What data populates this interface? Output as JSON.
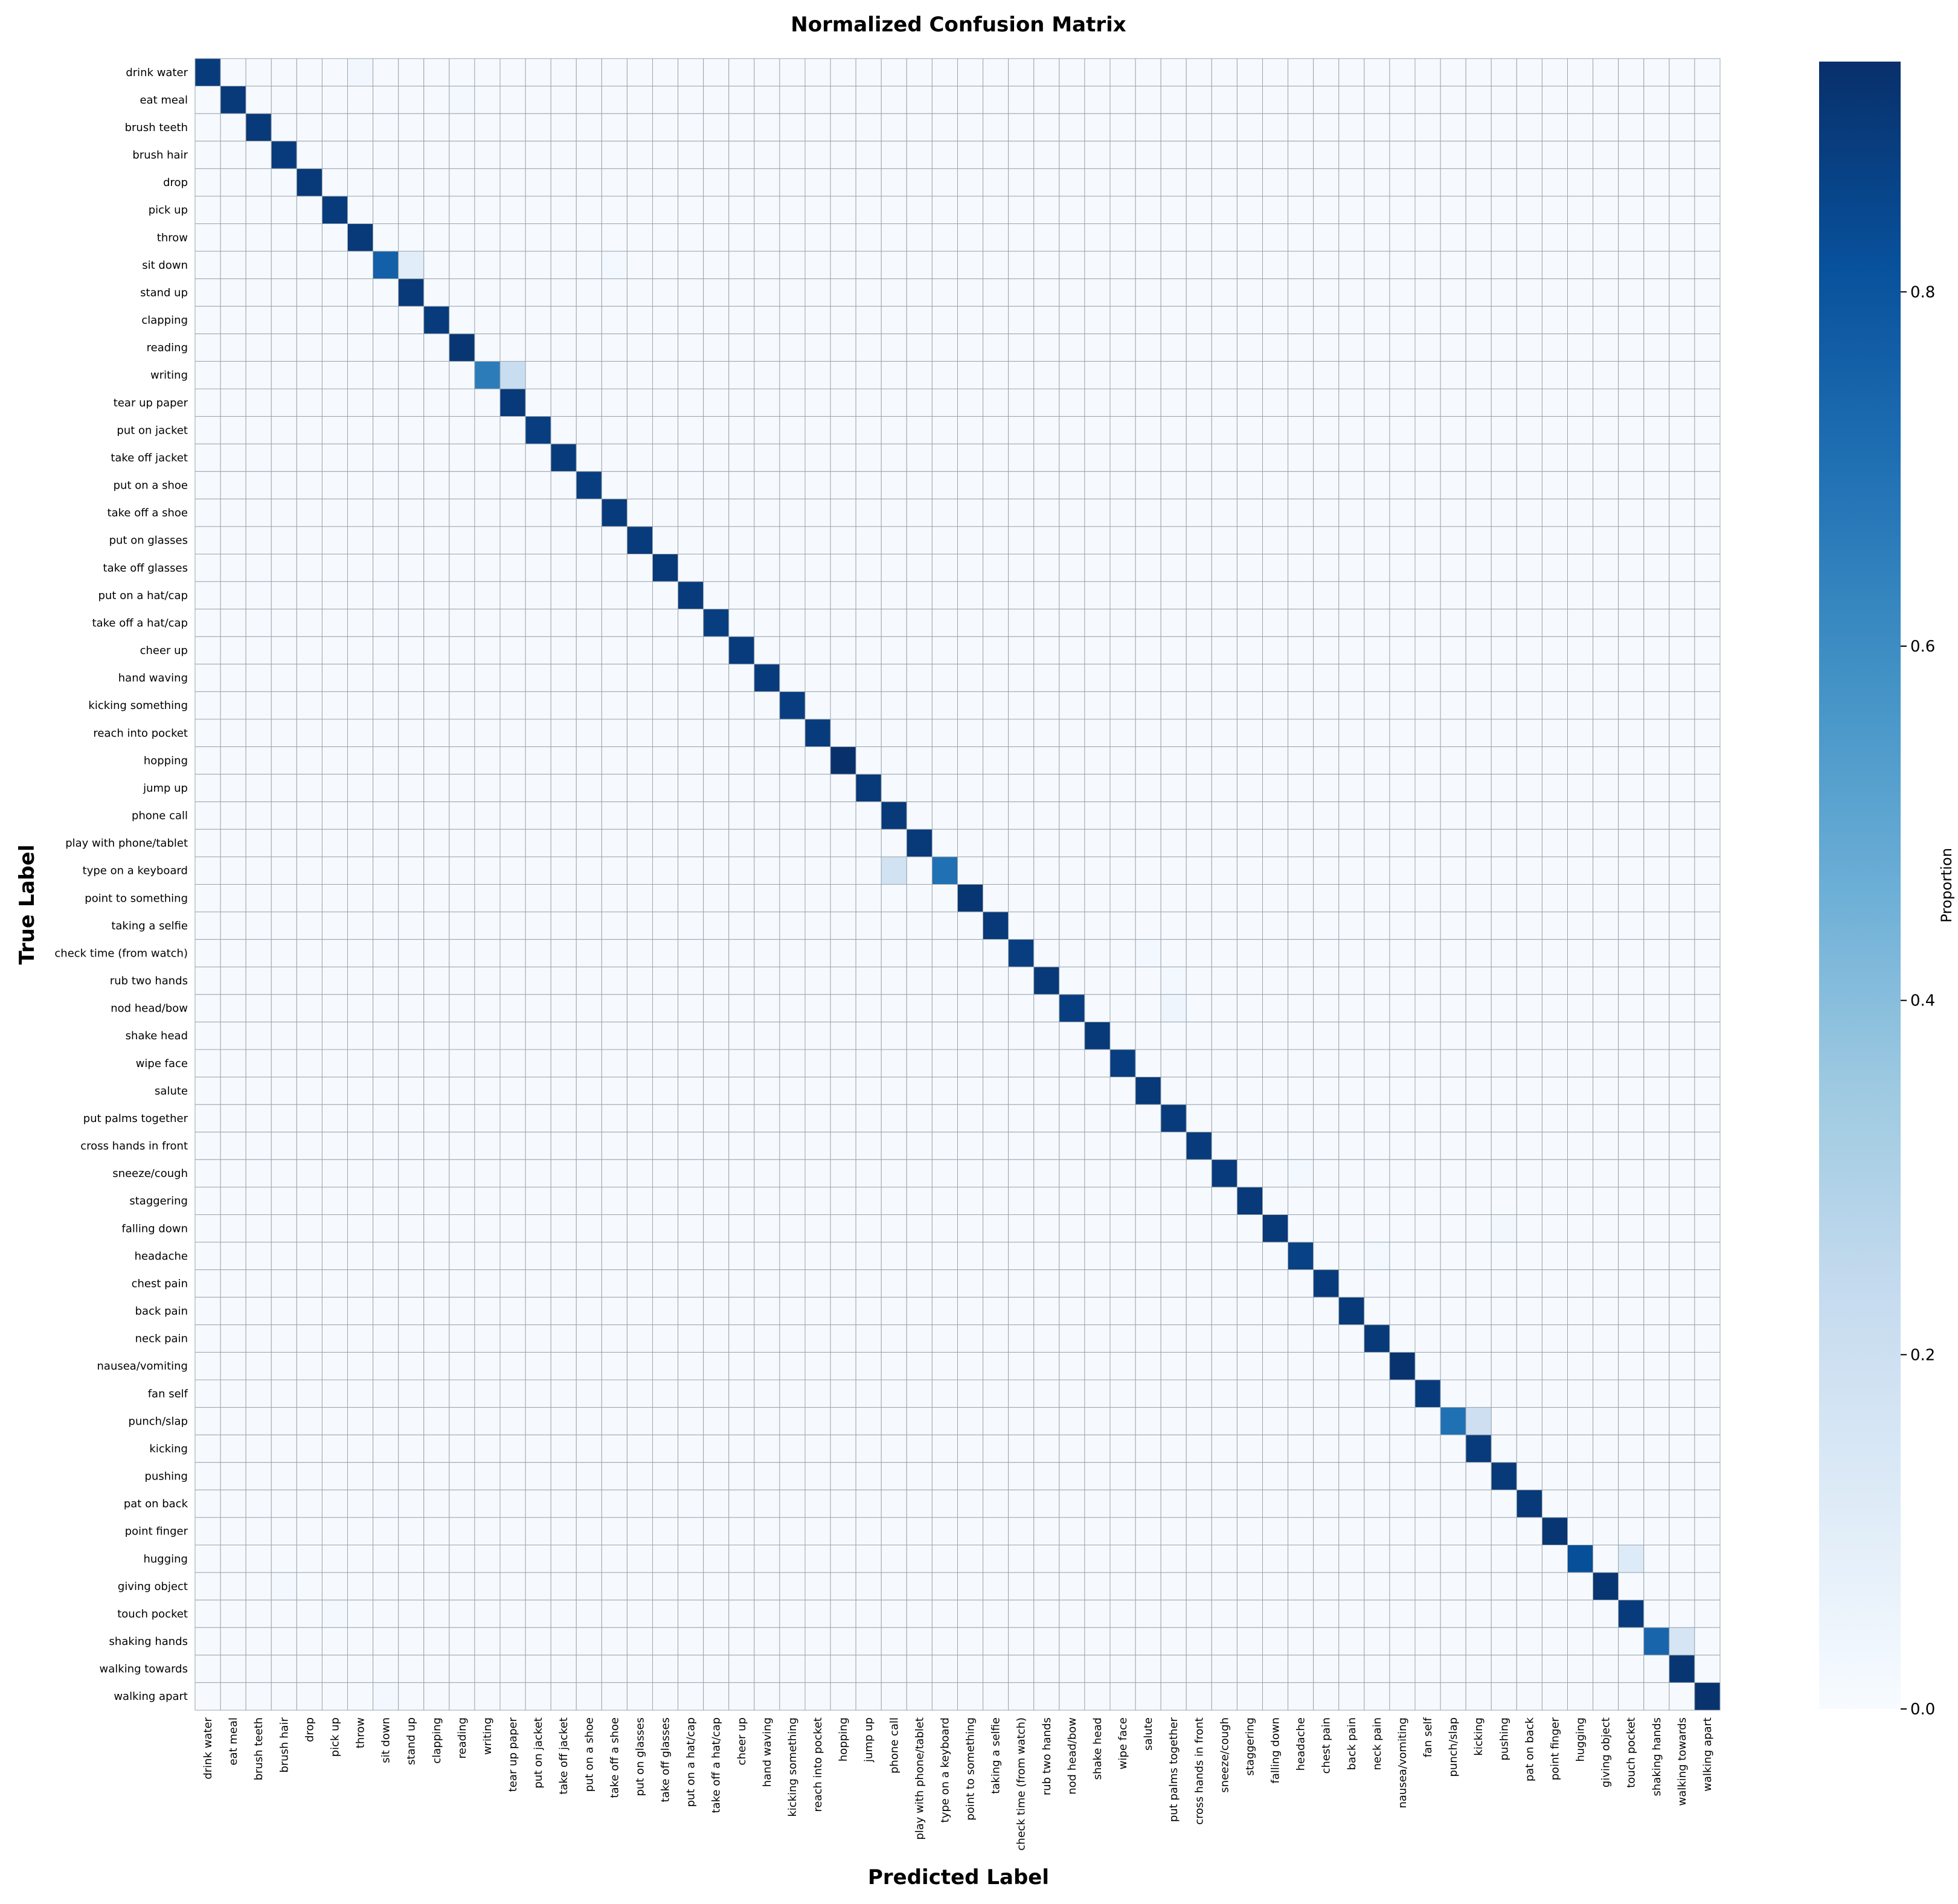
{
  "chart_data": {
    "type": "heatmap",
    "title": "Normalized Confusion Matrix",
    "xlabel": "Predicted Label",
    "ylabel": "True Label",
    "colorbar_label": "Proportion",
    "colorbar_range": [
      0,
      0.93
    ],
    "colorbar_ticks": [
      "0.0",
      "0.2",
      "0.4",
      "0.6",
      "0.8"
    ],
    "colormap": "Blues",
    "grid": true,
    "labels": [
      "drink water",
      "eat meal",
      "brush teeth",
      "brush hair",
      "drop",
      "pick up",
      "throw",
      "sit down",
      "stand up",
      "clapping",
      "reading",
      "writing",
      "tear up paper",
      "put on jacket",
      "take off jacket",
      "put on a shoe",
      "take off a shoe",
      "put on glasses",
      "take off glasses",
      "put on a hat/cap",
      "take off a hat/cap",
      "cheer up",
      "hand waving",
      "kicking something",
      "reach into pocket",
      "hopping",
      "jump up",
      "phone call",
      "play with phone/tablet",
      "type on a keyboard",
      "point to something",
      "taking a selfie",
      "check time (from watch)",
      "rub two hands",
      "nod head/bow",
      "shake head",
      "wipe face",
      "salute",
      "put palms together",
      "cross hands in front",
      "sneeze/cough",
      "staggering",
      "falling down",
      "headache",
      "chest pain",
      "back pain",
      "neck pain",
      "nausea/vomiting",
      "fan self",
      "punch/slap",
      "kicking",
      "pushing",
      "pat on back",
      "point finger",
      "hugging",
      "giving object",
      "touch pocket",
      "shaking hands",
      "walking towards",
      "walking apart"
    ],
    "diagonal": [
      0.89,
      0.9,
      0.9,
      0.89,
      0.9,
      0.89,
      0.9,
      0.76,
      0.9,
      0.89,
      0.91,
      0.66,
      0.9,
      0.88,
      0.89,
      0.88,
      0.89,
      0.89,
      0.9,
      0.89,
      0.88,
      0.89,
      0.89,
      0.88,
      0.89,
      0.93,
      0.9,
      0.9,
      0.9,
      0.7,
      0.91,
      0.9,
      0.88,
      0.9,
      0.88,
      0.9,
      0.88,
      0.9,
      0.89,
      0.89,
      0.89,
      0.9,
      0.9,
      0.87,
      0.89,
      0.9,
      0.9,
      0.92,
      0.89,
      0.7,
      0.89,
      0.9,
      0.9,
      0.91,
      0.82,
      0.91,
      0.89,
      0.74,
      0.91,
      0.92
    ],
    "off_diagonal": [
      {
        "true": "sit down",
        "pred": "stand up",
        "value": 0.1
      },
      {
        "true": "writing",
        "pred": "tear up paper",
        "value": 0.22
      },
      {
        "true": "type on a keyboard",
        "pred": "phone call",
        "value": 0.18
      },
      {
        "true": "punch/slap",
        "pred": "kicking",
        "value": 0.2
      },
      {
        "true": "hugging",
        "pred": "touch pocket",
        "value": 0.12
      },
      {
        "true": "shaking hands",
        "pred": "walking towards",
        "value": 0.16
      },
      {
        "true": "nod head/bow",
        "pred": "put palms together",
        "value": 0.04
      },
      {
        "true": "drink water",
        "pred": "throw",
        "value": 0.03
      },
      {
        "true": "eat meal",
        "pred": "reading",
        "value": 0.02
      },
      {
        "true": "falling down",
        "pred": "pushing",
        "value": 0.03
      },
      {
        "true": "sit down",
        "pred": "take off a shoe",
        "value": 0.02
      },
      {
        "true": "headache",
        "pred": "neck pain",
        "value": 0.02
      },
      {
        "true": "giving object",
        "pred": "brush hair",
        "value": 0.02
      },
      {
        "true": "touch pocket",
        "pred": "pick up",
        "value": 0.02
      },
      {
        "true": "walking apart",
        "pred": "sit down",
        "value": 0.02
      },
      {
        "true": "sneeze/cough",
        "pred": "headache",
        "value": 0.02
      },
      {
        "true": "check time (from watch)",
        "pred": "salute",
        "value": 0.02
      },
      {
        "true": "rub two hands",
        "pred": "put palms together",
        "value": 0.02
      }
    ]
  }
}
